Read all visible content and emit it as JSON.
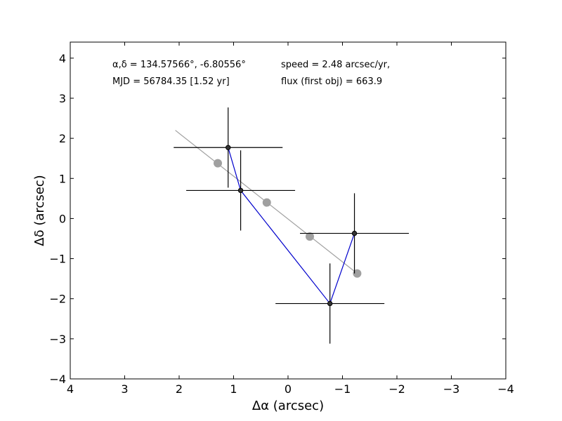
{
  "chart_data": {
    "type": "scatter",
    "xlabel": "Δα (arcsec)",
    "ylabel": "Δδ (arcsec)",
    "xlim": [
      4,
      -4
    ],
    "ylim": [
      -4,
      4.4
    ],
    "x_ticks": [
      4,
      3,
      2,
      1,
      0,
      -1,
      -2,
      -3,
      -4
    ],
    "x_tick_labels": [
      "4",
      "3",
      "2",
      "1",
      "0",
      "−1",
      "−2",
      "−3",
      "−4"
    ],
    "y_ticks": [
      4,
      3,
      2,
      1,
      0,
      -1,
      -2,
      -3,
      -4
    ],
    "y_tick_labels": [
      "4",
      "3",
      "2",
      "1",
      "0",
      "−1",
      "−2",
      "−3",
      "−4"
    ],
    "grid": false,
    "annotations": {
      "coords": "α,δ = 134.57566°, -6.80556°",
      "mjd": "MJD = 56784.35 [1.52 yr]",
      "speed": "speed = 2.48 arcsec/yr,",
      "flux": "flux (first obj) = 663.9"
    },
    "observed_points": [
      {
        "x": 1.1,
        "y": 1.77,
        "xerr": 1.0,
        "yerr": 1.0
      },
      {
        "x": 0.87,
        "y": 0.7,
        "xerr": 1.0,
        "yerr": 1.0
      },
      {
        "x": -1.22,
        "y": -0.37,
        "xerr": 1.0,
        "yerr": 1.0
      },
      {
        "x": -0.77,
        "y": -2.12,
        "xerr": 1.0,
        "yerr": 1.0
      }
    ],
    "connecting_path_order": [
      0,
      1,
      3,
      2
    ],
    "fit_line": {
      "start": [
        2.07,
        2.2
      ],
      "end": [
        -1.27,
        -1.37
      ]
    },
    "fit_points": [
      {
        "x": 1.29,
        "y": 1.38
      },
      {
        "x": 0.39,
        "y": 0.4
      },
      {
        "x": -0.4,
        "y": -0.45
      },
      {
        "x": -1.27,
        "y": -1.37
      }
    ],
    "colors": {
      "observed": "#222222",
      "errorbar": "#000000",
      "path": "#0000cc",
      "fit": "#a0a0a0",
      "frame": "#000000"
    }
  }
}
